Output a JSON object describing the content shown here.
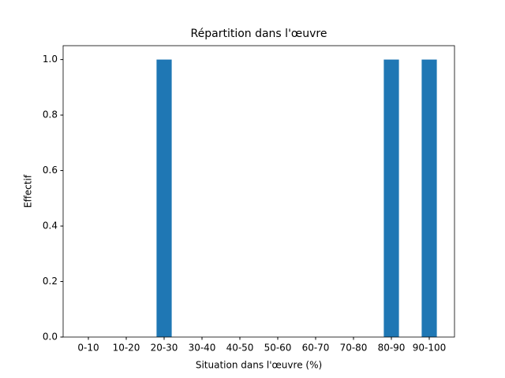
{
  "chart_data": {
    "type": "bar",
    "title": "Répartition dans l'œuvre",
    "x_label": "Situation dans l'œuvre (%)",
    "y_label": "Effectif",
    "categories": [
      "0-10",
      "10-20",
      "20-30",
      "30-40",
      "40-50",
      "50-60",
      "60-70",
      "70-80",
      "80-90",
      "90-100"
    ],
    "values": [
      0,
      0,
      1,
      0,
      0,
      0,
      0,
      0,
      1,
      1
    ],
    "color": "#1f77b4",
    "ylim": [
      0,
      1.05
    ],
    "yticks": [
      {
        "value": 0,
        "label": "0.0"
      },
      {
        "value": 0.2,
        "label": "0.2"
      },
      {
        "value": 0.4,
        "label": "0.4"
      },
      {
        "value": 0.6,
        "label": "0.6"
      },
      {
        "value": 0.8,
        "label": "0.8"
      },
      {
        "value": 1,
        "label": "1.0"
      }
    ],
    "grid": false
  }
}
